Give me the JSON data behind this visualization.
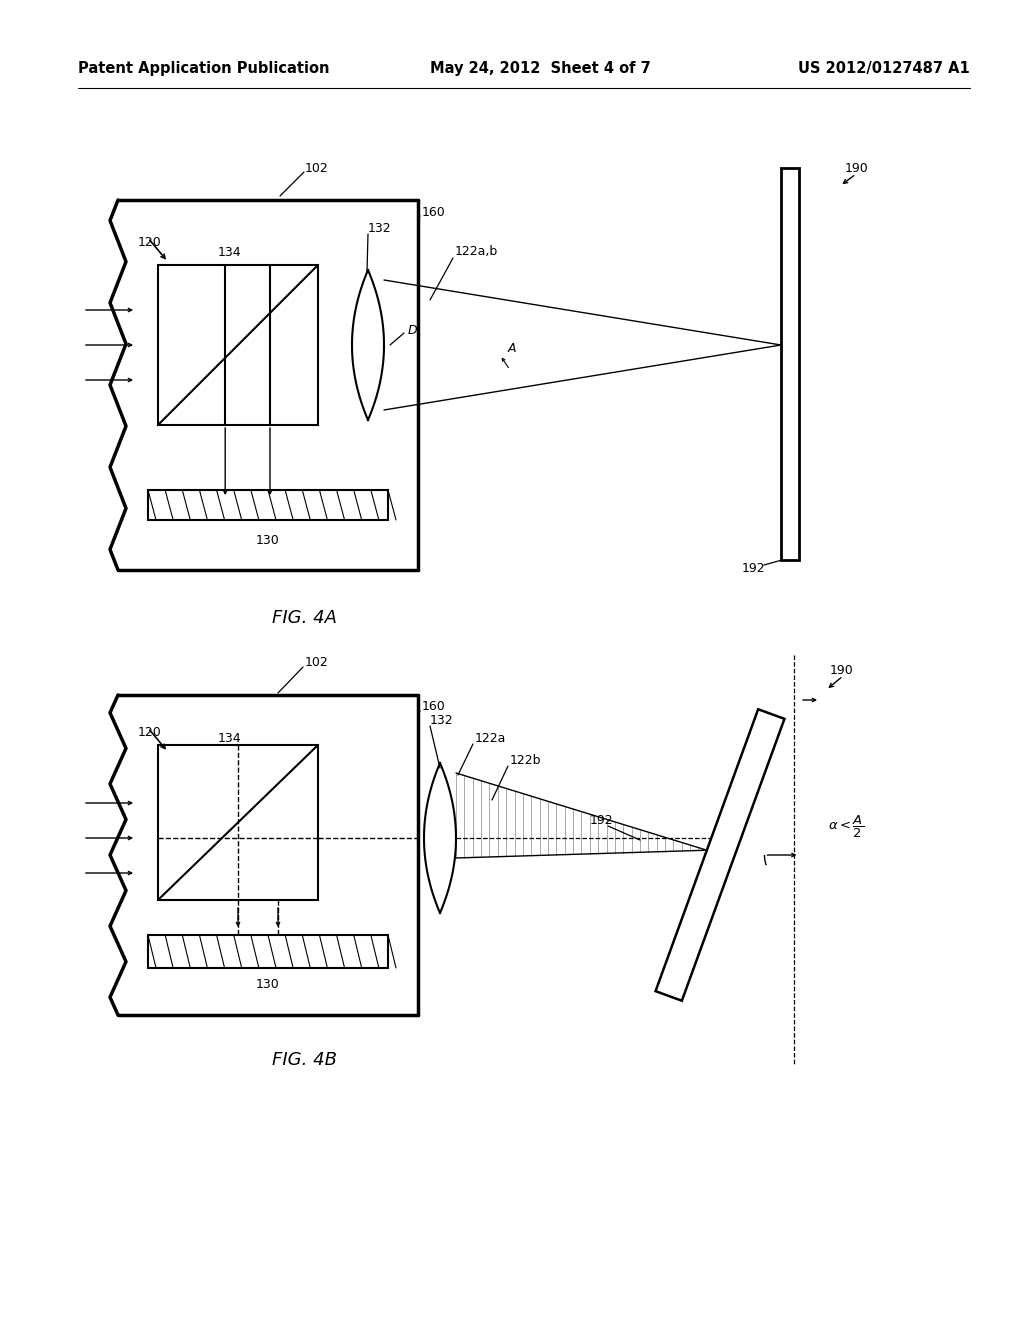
{
  "bg_color": "#ffffff",
  "line_color": "#000000",
  "header_left": "Patent Application Publication",
  "header_center": "May 24, 2012  Sheet 4 of 7",
  "header_right": "US 2012/0127487 A1",
  "fig4a_label": "FIG. 4A",
  "fig4b_label": "FIG. 4B",
  "label_fontsize": 13,
  "header_fontsize": 10.5
}
